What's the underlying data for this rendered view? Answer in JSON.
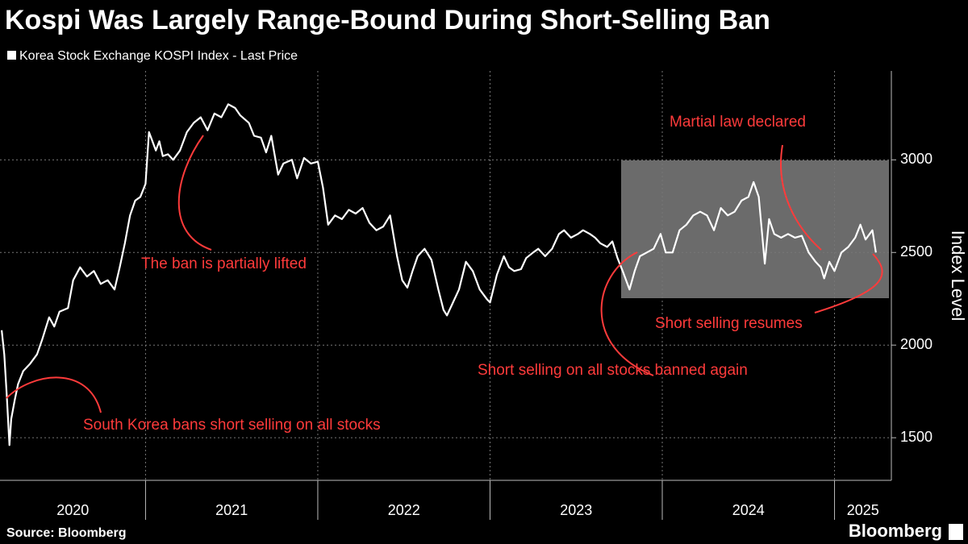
{
  "chart_data": {
    "type": "line",
    "title": "Kospi Was Largely Range-Bound During Short-Selling Ban",
    "y_label": "Index Level",
    "source": "Source: Bloomberg",
    "logo": "Bloomberg",
    "annotations": [
      "South Korea bans short selling on all stocks",
      "The ban is partially lifted",
      "Martial law declared",
      "Short selling resumes",
      "Short selling on all stocks banned again"
    ],
    "annotation_color": "#ff3b3b",
    "x": [
      2020.165,
      2020.18,
      2020.195,
      2020.21,
      2020.22,
      2020.24,
      2020.26,
      2020.29,
      2020.33,
      2020.37,
      2020.4,
      2020.44,
      2020.47,
      2020.5,
      2020.55,
      2020.58,
      2020.62,
      2020.66,
      2020.7,
      2020.74,
      2020.78,
      2020.82,
      2020.85,
      2020.88,
      2020.91,
      2020.94,
      2020.97,
      2021.0,
      2021.02,
      2021.04,
      2021.06,
      2021.08,
      2021.1,
      2021.13,
      2021.16,
      2021.2,
      2021.24,
      2021.28,
      2021.32,
      2021.36,
      2021.4,
      2021.44,
      2021.48,
      2021.52,
      2021.55,
      2021.6,
      2021.63,
      2021.67,
      2021.7,
      2021.73,
      2021.77,
      2021.8,
      2021.85,
      2021.88,
      2021.92,
      2021.96,
      2022.0,
      2022.03,
      2022.06,
      2022.1,
      2022.14,
      2022.18,
      2022.22,
      2022.26,
      2022.3,
      2022.34,
      2022.38,
      2022.42,
      2022.46,
      2022.49,
      2022.52,
      2022.55,
      2022.58,
      2022.62,
      2022.66,
      2022.7,
      2022.73,
      2022.75,
      2022.78,
      2022.82,
      2022.86,
      2022.9,
      2022.94,
      2022.98,
      2023.0,
      2023.04,
      2023.08,
      2023.11,
      2023.14,
      2023.18,
      2023.21,
      2023.25,
      2023.28,
      2023.32,
      2023.36,
      2023.4,
      2023.43,
      2023.47,
      2023.51,
      2023.54,
      2023.58,
      2023.61,
      2023.64,
      2023.68,
      2023.71,
      2023.74,
      2023.77,
      2023.81,
      2023.84,
      2023.87,
      2023.91,
      2023.95,
      2023.99,
      2024.02,
      2024.06,
      2024.1,
      2024.14,
      2024.18,
      2024.22,
      2024.26,
      2024.3,
      2024.34,
      2024.38,
      2024.42,
      2024.46,
      2024.5,
      2024.53,
      2024.56,
      2024.595,
      2024.62,
      2024.65,
      2024.69,
      2024.73,
      2024.77,
      2024.81,
      2024.85,
      2024.89,
      2024.92,
      2024.94,
      2024.97,
      2025.0,
      2025.04,
      2025.08,
      2025.12,
      2025.15,
      2025.18,
      2025.22,
      2025.24
    ],
    "series": [
      {
        "name": "Korea Stock Exchange KOSPI Index - Last Price",
        "color": "#ffffff",
        "values": [
          2080,
          1950,
          1720,
          1460,
          1600,
          1700,
          1790,
          1860,
          1900,
          1950,
          2030,
          2150,
          2100,
          2180,
          2200,
          2350,
          2420,
          2370,
          2400,
          2330,
          2350,
          2300,
          2420,
          2550,
          2700,
          2780,
          2800,
          2870,
          3150,
          3100,
          3050,
          3100,
          3020,
          3030,
          3000,
          3050,
          3150,
          3200,
          3230,
          3160,
          3250,
          3230,
          3300,
          3280,
          3240,
          3200,
          3130,
          3120,
          3040,
          3130,
          2920,
          2980,
          3000,
          2900,
          3010,
          2980,
          2990,
          2850,
          2650,
          2700,
          2680,
          2730,
          2710,
          2740,
          2660,
          2620,
          2640,
          2700,
          2480,
          2350,
          2310,
          2400,
          2480,
          2520,
          2460,
          2300,
          2190,
          2160,
          2220,
          2300,
          2450,
          2400,
          2300,
          2250,
          2230,
          2380,
          2480,
          2420,
          2400,
          2410,
          2470,
          2500,
          2520,
          2480,
          2520,
          2600,
          2620,
          2580,
          2600,
          2620,
          2600,
          2580,
          2550,
          2530,
          2560,
          2470,
          2400,
          2300,
          2400,
          2480,
          2500,
          2520,
          2600,
          2500,
          2500,
          2620,
          2650,
          2700,
          2720,
          2700,
          2620,
          2740,
          2700,
          2720,
          2780,
          2800,
          2880,
          2800,
          2440,
          2680,
          2600,
          2580,
          2600,
          2580,
          2590,
          2500,
          2450,
          2420,
          2360,
          2450,
          2400,
          2500,
          2530,
          2580,
          2650,
          2570,
          2620,
          2500
        ]
      }
    ],
    "xlim": [
      2020.155,
      2025.33
    ],
    "xticks": [
      2020,
      2021,
      2022,
      2023,
      2024,
      2025
    ],
    "ylim": [
      1270,
      3480
    ],
    "yticks": [
      1500,
      2000,
      2500,
      3000
    ],
    "grid": true
  }
}
